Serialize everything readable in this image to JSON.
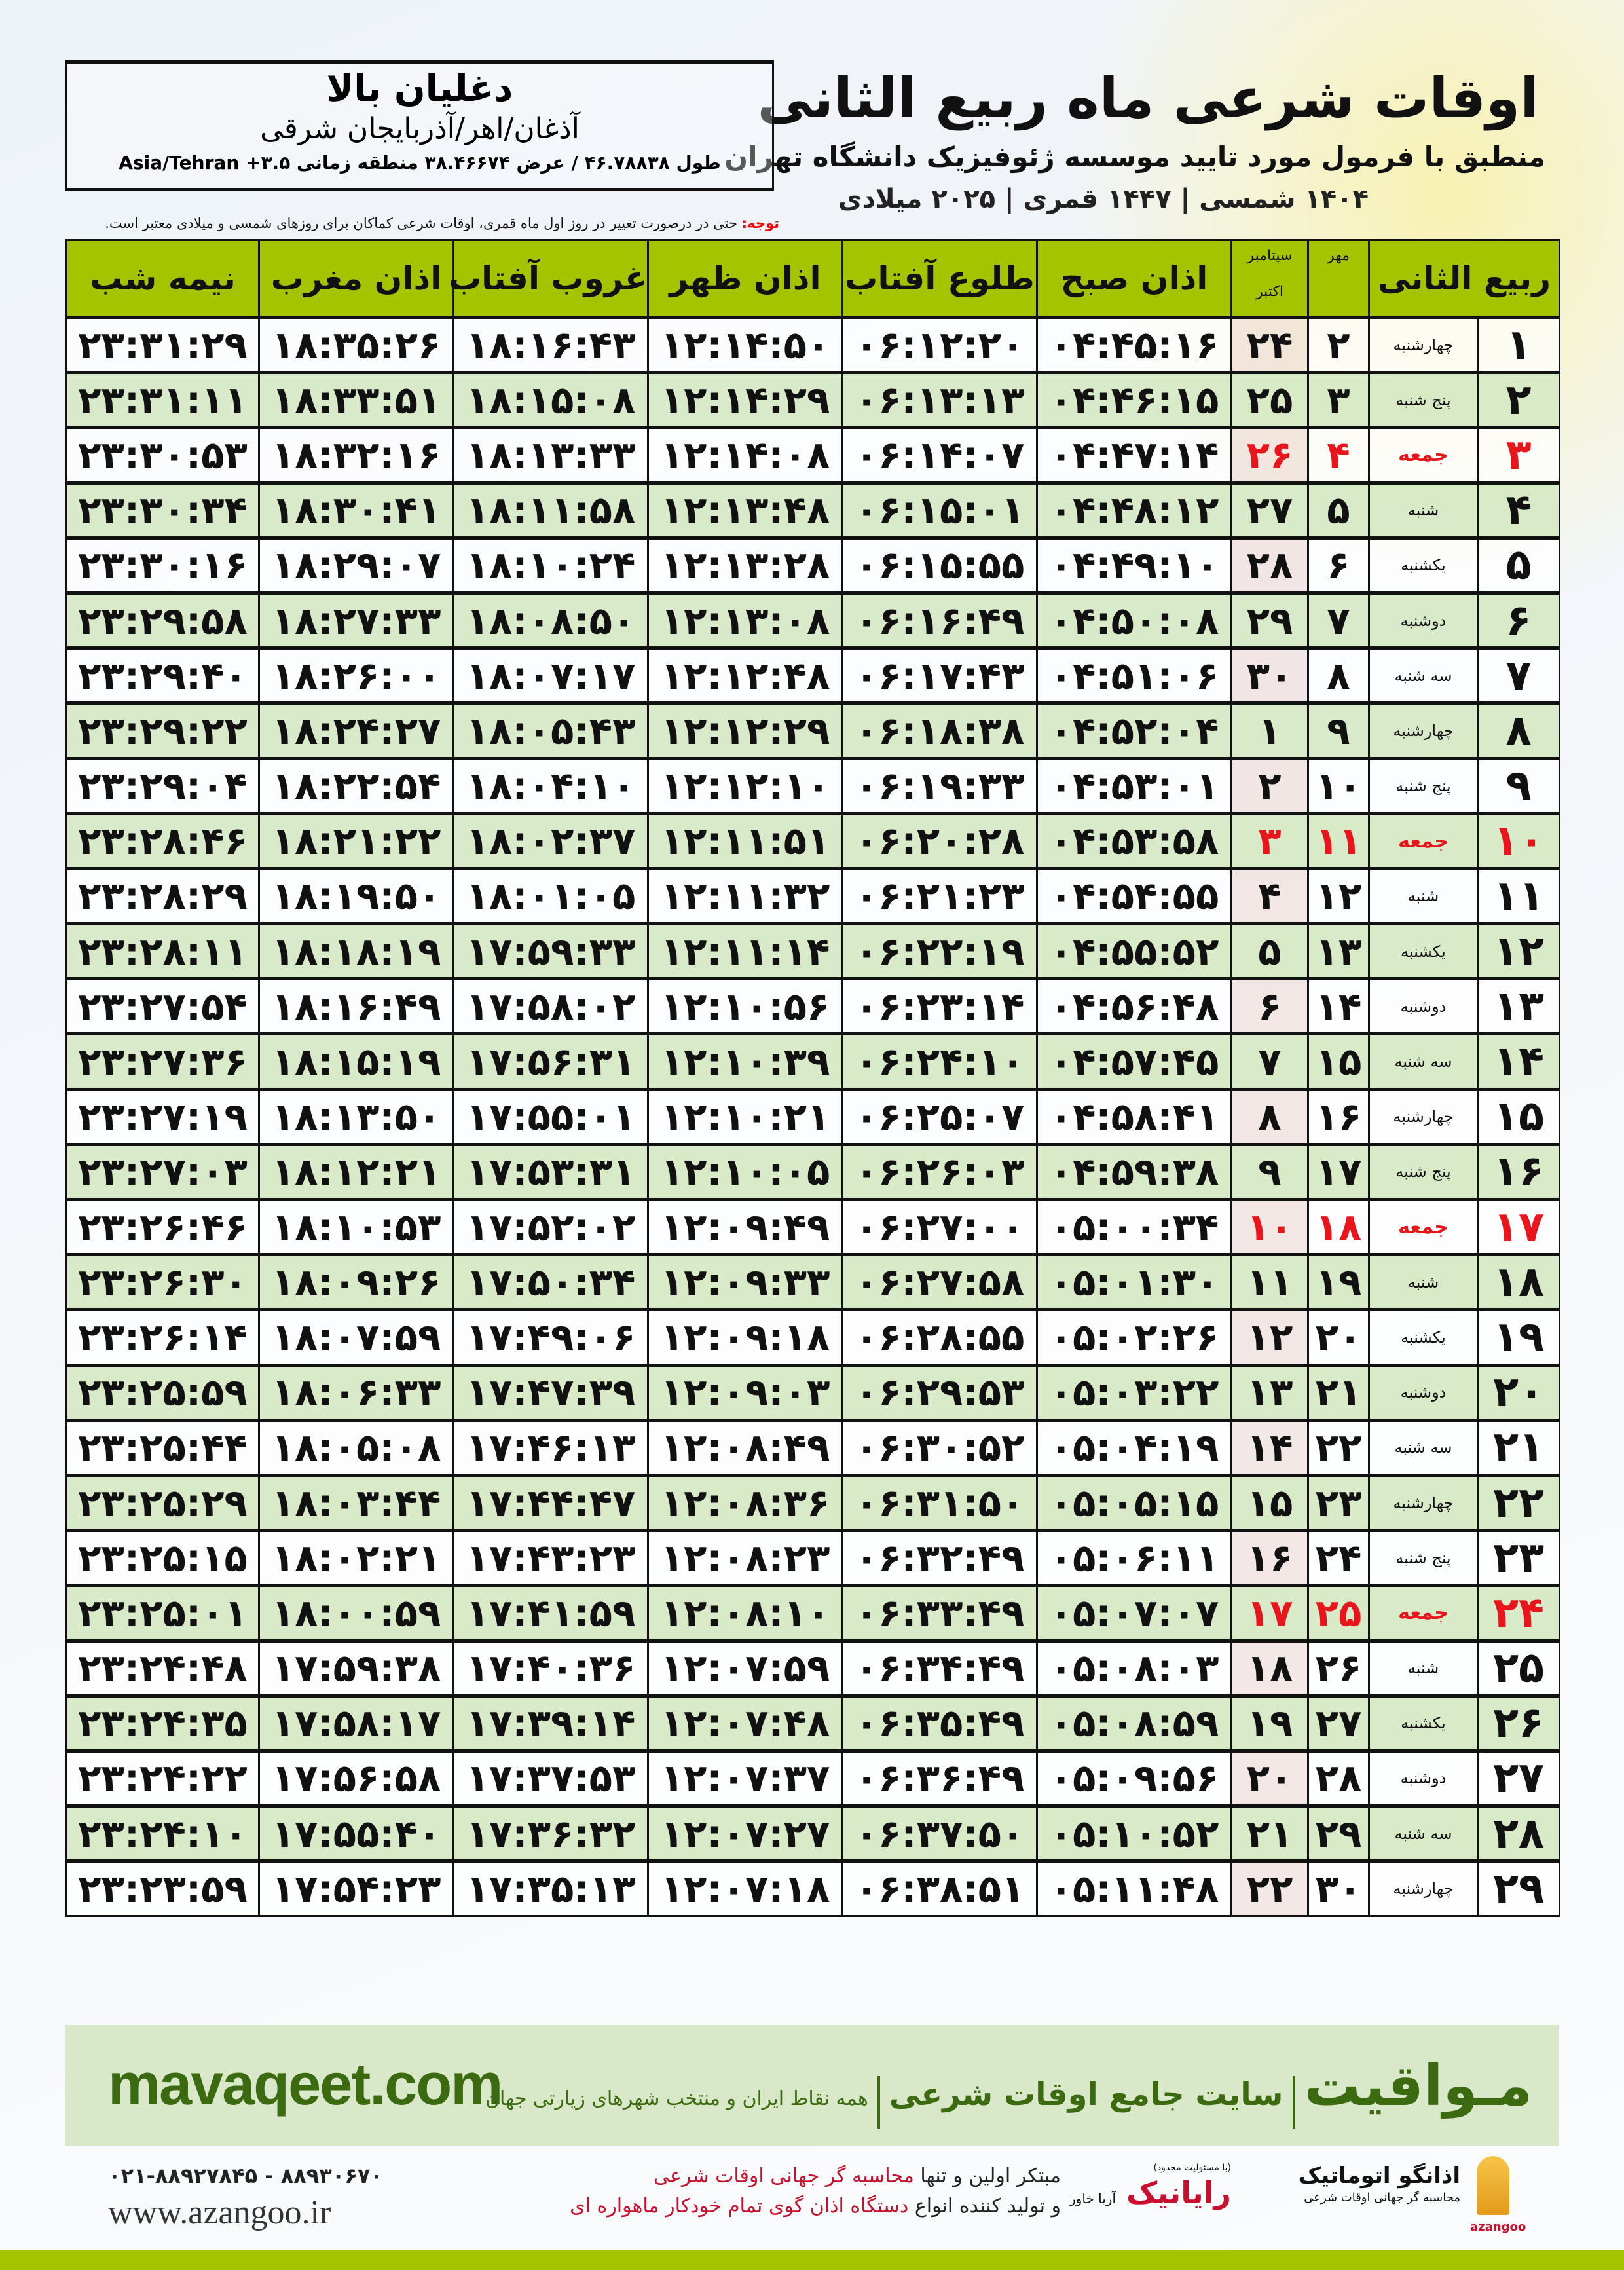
{
  "header": {
    "title": "اوقات شرعی ماه ربیع الثانی",
    "subtitle": "منطبق با فرمول مورد تایید موسسه ژئوفیزیک دانشگاه تهران",
    "dates": "۱۴۰۴ شمسی | ۱۴۴۷ قمری | ۲۰۲۵ میلادی"
  },
  "location": {
    "name": "دغلیان بالا",
    "region": "آذغان/اهر/آذربایجان شرقی",
    "coords": "طول ۴۶.۷۸۸۳۸ / عرض ۳۸.۴۶۶۷۴ منطقه زمانی ۳.۵+ Asia/Tehran"
  },
  "note": {
    "label": "توجه:",
    "text": " حتی در درصورت تغییر در روز اول ماه قمری، اوقات شرعی کماکان برای روزهای شمسی و میلادی معتبر است."
  },
  "columns": {
    "hijri": "ربیع الثانی",
    "mehr": "مهر",
    "greg_top": "سپتامبر",
    "greg_bottom": "اکتبر",
    "subh": "اذان صبح",
    "tulu": "طلوع آفتاب",
    "zuhr": "اذان ظهر",
    "ghurub": "غروب آفتاب",
    "maghrib": "اذان مغرب",
    "nimeh": "نیمه شب"
  },
  "accent_colors": {
    "header": "#a5c400",
    "alt_row": "#d6e8c4",
    "holiday": "#e8161c",
    "brand": "#3b6a10"
  },
  "rows": [
    {
      "day": "۱",
      "weekday": "چهارشنبه",
      "mehr": "۲",
      "greg": "۲۴",
      "subh": "۰۴:۴۵:۱۶",
      "tulu": "۰۶:۱۲:۲۰",
      "zuhr": "۱۲:۱۴:۵۰",
      "ghurub": "۱۸:۱۶:۴۳",
      "maghrib": "۱۸:۳۵:۲۶",
      "nimeh": "۲۳:۳۱:۲۹",
      "holiday": false
    },
    {
      "day": "۲",
      "weekday": "پنج شنبه",
      "mehr": "۳",
      "greg": "۲۵",
      "subh": "۰۴:۴۶:۱۵",
      "tulu": "۰۶:۱۳:۱۳",
      "zuhr": "۱۲:۱۴:۲۹",
      "ghurub": "۱۸:۱۵:۰۸",
      "maghrib": "۱۸:۳۳:۵۱",
      "nimeh": "۲۳:۳۱:۱۱",
      "holiday": false
    },
    {
      "day": "۳",
      "weekday": "جمعه",
      "mehr": "۴",
      "greg": "۲۶",
      "subh": "۰۴:۴۷:۱۴",
      "tulu": "۰۶:۱۴:۰۷",
      "zuhr": "۱۲:۱۴:۰۸",
      "ghurub": "۱۸:۱۳:۳۳",
      "maghrib": "۱۸:۳۲:۱۶",
      "nimeh": "۲۳:۳۰:۵۳",
      "holiday": true
    },
    {
      "day": "۴",
      "weekday": "شنبه",
      "mehr": "۵",
      "greg": "۲۷",
      "subh": "۰۴:۴۸:۱۲",
      "tulu": "۰۶:۱۵:۰۱",
      "zuhr": "۱۲:۱۳:۴۸",
      "ghurub": "۱۸:۱۱:۵۸",
      "maghrib": "۱۸:۳۰:۴۱",
      "nimeh": "۲۳:۳۰:۳۴",
      "holiday": false
    },
    {
      "day": "۵",
      "weekday": "یکشنبه",
      "mehr": "۶",
      "greg": "۲۸",
      "subh": "۰۴:۴۹:۱۰",
      "tulu": "۰۶:۱۵:۵۵",
      "zuhr": "۱۲:۱۳:۲۸",
      "ghurub": "۱۸:۱۰:۲۴",
      "maghrib": "۱۸:۲۹:۰۷",
      "nimeh": "۲۳:۳۰:۱۶",
      "holiday": false
    },
    {
      "day": "۶",
      "weekday": "دوشنبه",
      "mehr": "۷",
      "greg": "۲۹",
      "subh": "۰۴:۵۰:۰۸",
      "tulu": "۰۶:۱۶:۴۹",
      "zuhr": "۱۲:۱۳:۰۸",
      "ghurub": "۱۸:۰۸:۵۰",
      "maghrib": "۱۸:۲۷:۳۳",
      "nimeh": "۲۳:۲۹:۵۸",
      "holiday": false
    },
    {
      "day": "۷",
      "weekday": "سه شنبه",
      "mehr": "۸",
      "greg": "۳۰",
      "subh": "۰۴:۵۱:۰۶",
      "tulu": "۰۶:۱۷:۴۳",
      "zuhr": "۱۲:۱۲:۴۸",
      "ghurub": "۱۸:۰۷:۱۷",
      "maghrib": "۱۸:۲۶:۰۰",
      "nimeh": "۲۳:۲۹:۴۰",
      "holiday": false
    },
    {
      "day": "۸",
      "weekday": "چهارشنبه",
      "mehr": "۹",
      "greg": "۱",
      "subh": "۰۴:۵۲:۰۴",
      "tulu": "۰۶:۱۸:۳۸",
      "zuhr": "۱۲:۱۲:۲۹",
      "ghurub": "۱۸:۰۵:۴۳",
      "maghrib": "۱۸:۲۴:۲۷",
      "nimeh": "۲۳:۲۹:۲۲",
      "holiday": false
    },
    {
      "day": "۹",
      "weekday": "پنج شنبه",
      "mehr": "۱۰",
      "greg": "۲",
      "subh": "۰۴:۵۳:۰۱",
      "tulu": "۰۶:۱۹:۳۳",
      "zuhr": "۱۲:۱۲:۱۰",
      "ghurub": "۱۸:۰۴:۱۰",
      "maghrib": "۱۸:۲۲:۵۴",
      "nimeh": "۲۳:۲۹:۰۴",
      "holiday": false
    },
    {
      "day": "۱۰",
      "weekday": "جمعه",
      "mehr": "۱۱",
      "greg": "۳",
      "subh": "۰۴:۵۳:۵۸",
      "tulu": "۰۶:۲۰:۲۸",
      "zuhr": "۱۲:۱۱:۵۱",
      "ghurub": "۱۸:۰۲:۳۷",
      "maghrib": "۱۸:۲۱:۲۲",
      "nimeh": "۲۳:۲۸:۴۶",
      "holiday": true
    },
    {
      "day": "۱۱",
      "weekday": "شنبه",
      "mehr": "۱۲",
      "greg": "۴",
      "subh": "۰۴:۵۴:۵۵",
      "tulu": "۰۶:۲۱:۲۳",
      "zuhr": "۱۲:۱۱:۳۲",
      "ghurub": "۱۸:۰۱:۰۵",
      "maghrib": "۱۸:۱۹:۵۰",
      "nimeh": "۲۳:۲۸:۲۹",
      "holiday": false
    },
    {
      "day": "۱۲",
      "weekday": "یکشنبه",
      "mehr": "۱۳",
      "greg": "۵",
      "subh": "۰۴:۵۵:۵۲",
      "tulu": "۰۶:۲۲:۱۹",
      "zuhr": "۱۲:۱۱:۱۴",
      "ghurub": "۱۷:۵۹:۳۳",
      "maghrib": "۱۸:۱۸:۱۹",
      "nimeh": "۲۳:۲۸:۱۱",
      "holiday": false
    },
    {
      "day": "۱۳",
      "weekday": "دوشنبه",
      "mehr": "۱۴",
      "greg": "۶",
      "subh": "۰۴:۵۶:۴۸",
      "tulu": "۰۶:۲۳:۱۴",
      "zuhr": "۱۲:۱۰:۵۶",
      "ghurub": "۱۷:۵۸:۰۲",
      "maghrib": "۱۸:۱۶:۴۹",
      "nimeh": "۲۳:۲۷:۵۴",
      "holiday": false
    },
    {
      "day": "۱۴",
      "weekday": "سه شنبه",
      "mehr": "۱۵",
      "greg": "۷",
      "subh": "۰۴:۵۷:۴۵",
      "tulu": "۰۶:۲۴:۱۰",
      "zuhr": "۱۲:۱۰:۳۹",
      "ghurub": "۱۷:۵۶:۳۱",
      "maghrib": "۱۸:۱۵:۱۹",
      "nimeh": "۲۳:۲۷:۳۶",
      "holiday": false
    },
    {
      "day": "۱۵",
      "weekday": "چهارشنبه",
      "mehr": "۱۶",
      "greg": "۸",
      "subh": "۰۴:۵۸:۴۱",
      "tulu": "۰۶:۲۵:۰۷",
      "zuhr": "۱۲:۱۰:۲۱",
      "ghurub": "۱۷:۵۵:۰۱",
      "maghrib": "۱۸:۱۳:۵۰",
      "nimeh": "۲۳:۲۷:۱۹",
      "holiday": false
    },
    {
      "day": "۱۶",
      "weekday": "پنج شنبه",
      "mehr": "۱۷",
      "greg": "۹",
      "subh": "۰۴:۵۹:۳۸",
      "tulu": "۰۶:۲۶:۰۳",
      "zuhr": "۱۲:۱۰:۰۵",
      "ghurub": "۱۷:۵۳:۳۱",
      "maghrib": "۱۸:۱۲:۲۱",
      "nimeh": "۲۳:۲۷:۰۳",
      "holiday": false
    },
    {
      "day": "۱۷",
      "weekday": "جمعه",
      "mehr": "۱۸",
      "greg": "۱۰",
      "subh": "۰۵:۰۰:۳۴",
      "tulu": "۰۶:۲۷:۰۰",
      "zuhr": "۱۲:۰۹:۴۹",
      "ghurub": "۱۷:۵۲:۰۲",
      "maghrib": "۱۸:۱۰:۵۳",
      "nimeh": "۲۳:۲۶:۴۶",
      "holiday": true
    },
    {
      "day": "۱۸",
      "weekday": "شنبه",
      "mehr": "۱۹",
      "greg": "۱۱",
      "subh": "۰۵:۰۱:۳۰",
      "tulu": "۰۶:۲۷:۵۸",
      "zuhr": "۱۲:۰۹:۳۳",
      "ghurub": "۱۷:۵۰:۳۴",
      "maghrib": "۱۸:۰۹:۲۶",
      "nimeh": "۲۳:۲۶:۳۰",
      "holiday": false
    },
    {
      "day": "۱۹",
      "weekday": "یکشنبه",
      "mehr": "۲۰",
      "greg": "۱۲",
      "subh": "۰۵:۰۲:۲۶",
      "tulu": "۰۶:۲۸:۵۵",
      "zuhr": "۱۲:۰۹:۱۸",
      "ghurub": "۱۷:۴۹:۰۶",
      "maghrib": "۱۸:۰۷:۵۹",
      "nimeh": "۲۳:۲۶:۱۴",
      "holiday": false
    },
    {
      "day": "۲۰",
      "weekday": "دوشنبه",
      "mehr": "۲۱",
      "greg": "۱۳",
      "subh": "۰۵:۰۳:۲۲",
      "tulu": "۰۶:۲۹:۵۳",
      "zuhr": "۱۲:۰۹:۰۳",
      "ghurub": "۱۷:۴۷:۳۹",
      "maghrib": "۱۸:۰۶:۳۳",
      "nimeh": "۲۳:۲۵:۵۹",
      "holiday": false
    },
    {
      "day": "۲۱",
      "weekday": "سه شنبه",
      "mehr": "۲۲",
      "greg": "۱۴",
      "subh": "۰۵:۰۴:۱۹",
      "tulu": "۰۶:۳۰:۵۲",
      "zuhr": "۱۲:۰۸:۴۹",
      "ghurub": "۱۷:۴۶:۱۳",
      "maghrib": "۱۸:۰۵:۰۸",
      "nimeh": "۲۳:۲۵:۴۴",
      "holiday": false
    },
    {
      "day": "۲۲",
      "weekday": "چهارشنبه",
      "mehr": "۲۳",
      "greg": "۱۵",
      "subh": "۰۵:۰۵:۱۵",
      "tulu": "۰۶:۳۱:۵۰",
      "zuhr": "۱۲:۰۸:۳۶",
      "ghurub": "۱۷:۴۴:۴۷",
      "maghrib": "۱۸:۰۳:۴۴",
      "nimeh": "۲۳:۲۵:۲۹",
      "holiday": false
    },
    {
      "day": "۲۳",
      "weekday": "پنج شنبه",
      "mehr": "۲۴",
      "greg": "۱۶",
      "subh": "۰۵:۰۶:۱۱",
      "tulu": "۰۶:۳۲:۴۹",
      "zuhr": "۱۲:۰۸:۲۳",
      "ghurub": "۱۷:۴۳:۲۳",
      "maghrib": "۱۸:۰۲:۲۱",
      "nimeh": "۲۳:۲۵:۱۵",
      "holiday": false
    },
    {
      "day": "۲۴",
      "weekday": "جمعه",
      "mehr": "۲۵",
      "greg": "۱۷",
      "subh": "۰۵:۰۷:۰۷",
      "tulu": "۰۶:۳۳:۴۹",
      "zuhr": "۱۲:۰۸:۱۰",
      "ghurub": "۱۷:۴۱:۵۹",
      "maghrib": "۱۸:۰۰:۵۹",
      "nimeh": "۲۳:۲۵:۰۱",
      "holiday": true
    },
    {
      "day": "۲۵",
      "weekday": "شنبه",
      "mehr": "۲۶",
      "greg": "۱۸",
      "subh": "۰۵:۰۸:۰۳",
      "tulu": "۰۶:۳۴:۴۹",
      "zuhr": "۱۲:۰۷:۵۹",
      "ghurub": "۱۷:۴۰:۳۶",
      "maghrib": "۱۷:۵۹:۳۸",
      "nimeh": "۲۳:۲۴:۴۸",
      "holiday": false
    },
    {
      "day": "۲۶",
      "weekday": "یکشنبه",
      "mehr": "۲۷",
      "greg": "۱۹",
      "subh": "۰۵:۰۸:۵۹",
      "tulu": "۰۶:۳۵:۴۹",
      "zuhr": "۱۲:۰۷:۴۸",
      "ghurub": "۱۷:۳۹:۱۴",
      "maghrib": "۱۷:۵۸:۱۷",
      "nimeh": "۲۳:۲۴:۳۵",
      "holiday": false
    },
    {
      "day": "۲۷",
      "weekday": "دوشنبه",
      "mehr": "۲۸",
      "greg": "۲۰",
      "subh": "۰۵:۰۹:۵۶",
      "tulu": "۰۶:۳۶:۴۹",
      "zuhr": "۱۲:۰۷:۳۷",
      "ghurub": "۱۷:۳۷:۵۳",
      "maghrib": "۱۷:۵۶:۵۸",
      "nimeh": "۲۳:۲۴:۲۲",
      "holiday": false
    },
    {
      "day": "۲۸",
      "weekday": "سه شنبه",
      "mehr": "۲۹",
      "greg": "۲۱",
      "subh": "۰۵:۱۰:۵۲",
      "tulu": "۰۶:۳۷:۵۰",
      "zuhr": "۱۲:۰۷:۲۷",
      "ghurub": "۱۷:۳۶:۳۲",
      "maghrib": "۱۷:۵۵:۴۰",
      "nimeh": "۲۳:۲۴:۱۰",
      "holiday": false
    },
    {
      "day": "۲۹",
      "weekday": "چهارشنبه",
      "mehr": "۳۰",
      "greg": "۲۲",
      "subh": "۰۵:۱۱:۴۸",
      "tulu": "۰۶:۳۸:۵۱",
      "zuhr": "۱۲:۰۷:۱۸",
      "ghurub": "۱۷:۳۵:۱۳",
      "maghrib": "۱۷:۵۴:۲۳",
      "nimeh": "۲۳:۲۳:۵۹",
      "holiday": false
    }
  ],
  "footer": {
    "brand": "مـواقیت",
    "brand_tagline": "سایت جامع اوقات شرعی",
    "brand_sub": "همه نقاط ایران و منتخب شهرهای زیارتی جهان",
    "site": "mavaqeet.com",
    "phone": "۰۲۱-۸۸۹۲۷۸۴۵ - ۸۸۹۳۰۶۷۰",
    "website": "www.azangoo.ir",
    "promo1_a": "مبتکر اولین و تنها ",
    "promo1_b": "محاسبه گر جهانی اوقات شرعی",
    "promo2_a": "و تولید کننده انواع ",
    "promo2_b": "دستگاه اذان گوی تمام خودکار ماهواره ای",
    "logo_rayanik": "رایانیک",
    "logo_rayanik_sub": "آریا خاور",
    "logo_rayanik_note": "(با مسئولیت محدود)",
    "logo_azangoo": "اذانگو اتوماتیک",
    "logo_azangoo_sub": "محاسبه گر جهانی اوقات شرعی",
    "logo_azangoo_en": "azangoo"
  }
}
